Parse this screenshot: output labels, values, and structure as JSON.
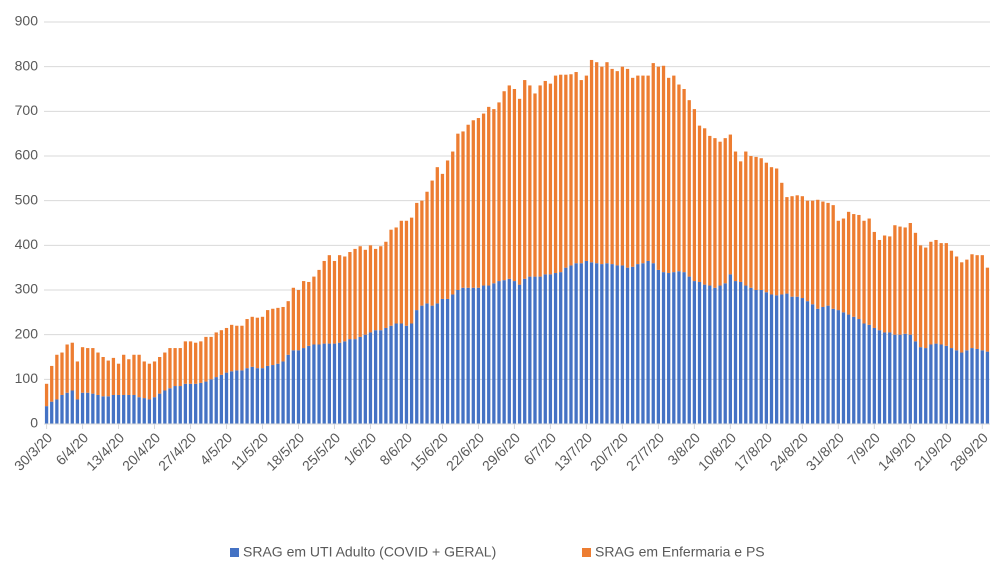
{
  "chart_data": {
    "type": "stacked_bar",
    "categories": [
      "30/3/20",
      null,
      null,
      null,
      null,
      null,
      null,
      "6/4/20",
      null,
      null,
      null,
      null,
      null,
      null,
      "13/4/20",
      null,
      null,
      null,
      null,
      null,
      null,
      "20/4/20",
      null,
      null,
      null,
      null,
      null,
      null,
      "27/4/20",
      null,
      null,
      null,
      null,
      null,
      null,
      "4/5/20",
      null,
      null,
      null,
      null,
      null,
      null,
      "11/5/20",
      null,
      null,
      null,
      null,
      null,
      null,
      "18/5/20",
      null,
      null,
      null,
      null,
      null,
      null,
      "25/5/20",
      null,
      null,
      null,
      null,
      null,
      null,
      "1/6/20",
      null,
      null,
      null,
      null,
      null,
      null,
      "8/6/20",
      null,
      null,
      null,
      null,
      null,
      null,
      "15/6/20",
      null,
      null,
      null,
      null,
      null,
      null,
      "22/6/20",
      null,
      null,
      null,
      null,
      null,
      null,
      "29/6/20",
      null,
      null,
      null,
      null,
      null,
      null,
      "6/7/20",
      null,
      null,
      null,
      null,
      null,
      null,
      "13/7/20",
      null,
      null,
      null,
      null,
      null,
      null,
      "20/7/20",
      null,
      null,
      null,
      null,
      null,
      null,
      "27/7/20",
      null,
      null,
      null,
      null,
      null,
      null,
      "3/8/20",
      null,
      null,
      null,
      null,
      null,
      null,
      "10/8/20",
      null,
      null,
      null,
      null,
      null,
      null,
      "17/8/20",
      null,
      null,
      null,
      null,
      null,
      null,
      "24/8/20",
      null,
      null,
      null,
      null,
      null,
      null,
      "31/8/20",
      null,
      null,
      null,
      null,
      null,
      null,
      "7/9/20",
      null,
      null,
      null,
      null,
      null,
      null,
      "14/9/20",
      null,
      null,
      null,
      null,
      null,
      null,
      "21/9/20",
      null,
      null,
      null,
      null,
      null,
      null,
      "28/9/20",
      null
    ],
    "series": [
      {
        "name": "SRAG em UTI Adulto (COVID + GERAL)",
        "color": "#4472c4",
        "values": [
          40,
          50,
          55,
          65,
          70,
          75,
          55,
          70,
          70,
          68,
          65,
          62,
          62,
          65,
          65,
          65,
          65,
          65,
          60,
          58,
          55,
          60,
          68,
          75,
          80,
          85,
          85,
          90,
          90,
          90,
          92,
          95,
          100,
          105,
          110,
          115,
          118,
          120,
          120,
          125,
          128,
          125,
          125,
          130,
          132,
          135,
          140,
          155,
          165,
          165,
          170,
          175,
          178,
          178,
          180,
          180,
          180,
          182,
          185,
          190,
          190,
          195,
          200,
          205,
          210,
          210,
          215,
          220,
          225,
          225,
          220,
          225,
          255,
          265,
          270,
          265,
          270,
          280,
          280,
          290,
          300,
          305,
          305,
          305,
          305,
          310,
          310,
          315,
          320,
          322,
          325,
          320,
          312,
          325,
          330,
          330,
          330,
          335,
          335,
          338,
          340,
          350,
          355,
          360,
          360,
          365,
          362,
          360,
          358,
          360,
          358,
          355,
          355,
          350,
          352,
          358,
          360,
          365,
          360,
          345,
          340,
          338,
          340,
          342,
          340,
          330,
          320,
          318,
          312,
          310,
          305,
          310,
          315,
          335,
          320,
          318,
          310,
          305,
          300,
          300,
          295,
          290,
          288,
          290,
          292,
          285,
          285,
          282,
          275,
          268,
          258,
          262,
          265,
          258,
          255,
          250,
          245,
          240,
          235,
          225,
          222,
          215,
          210,
          205,
          205,
          200,
          200,
          202,
          200,
          185,
          172,
          170,
          178,
          180,
          178,
          175,
          170,
          165,
          160,
          165,
          170,
          168,
          165,
          162
        ]
      },
      {
        "name": "SRAG em Enfermaria e PS",
        "color": "#ed7d31",
        "values": [
          50,
          80,
          100,
          95,
          108,
          107,
          85,
          102,
          100,
          102,
          95,
          88,
          80,
          83,
          70,
          90,
          80,
          90,
          95,
          82,
          80,
          80,
          82,
          85,
          90,
          85,
          85,
          95,
          95,
          92,
          93,
          100,
          95,
          100,
          100,
          100,
          104,
          100,
          100,
          110,
          112,
          113,
          115,
          125,
          126,
          125,
          122,
          120,
          140,
          135,
          150,
          143,
          152,
          167,
          185,
          198,
          185,
          196,
          190,
          195,
          202,
          203,
          190,
          195,
          182,
          188,
          193,
          215,
          215,
          230,
          235,
          237,
          240,
          235,
          250,
          280,
          305,
          280,
          310,
          320,
          350,
          350,
          365,
          375,
          380,
          385,
          400,
          390,
          400,
          423,
          433,
          430,
          416,
          445,
          428,
          410,
          428,
          433,
          427,
          442,
          442,
          432,
          428,
          428,
          410,
          415,
          453,
          450,
          442,
          450,
          437,
          435,
          445,
          445,
          423,
          422,
          420,
          415,
          448,
          455,
          462,
          437,
          440,
          418,
          410,
          395,
          385,
          350,
          350,
          335,
          335,
          322,
          325,
          313,
          290,
          270,
          300,
          295,
          298,
          295,
          290,
          285,
          284,
          250,
          216,
          225,
          227,
          228,
          225,
          232,
          244,
          236,
          230,
          232,
          200,
          210,
          230,
          230,
          233,
          230,
          238,
          215,
          202,
          217,
          215,
          245,
          242,
          238,
          250,
          243,
          228,
          225,
          230,
          232,
          227,
          230,
          218,
          210,
          202,
          203,
          210,
          210,
          213,
          188
        ]
      }
    ],
    "ylim": [
      0,
      900
    ],
    "yticks": [
      0,
      100,
      200,
      300,
      400,
      500,
      600,
      700,
      800,
      900
    ],
    "grid": true,
    "legend": "bottom"
  }
}
